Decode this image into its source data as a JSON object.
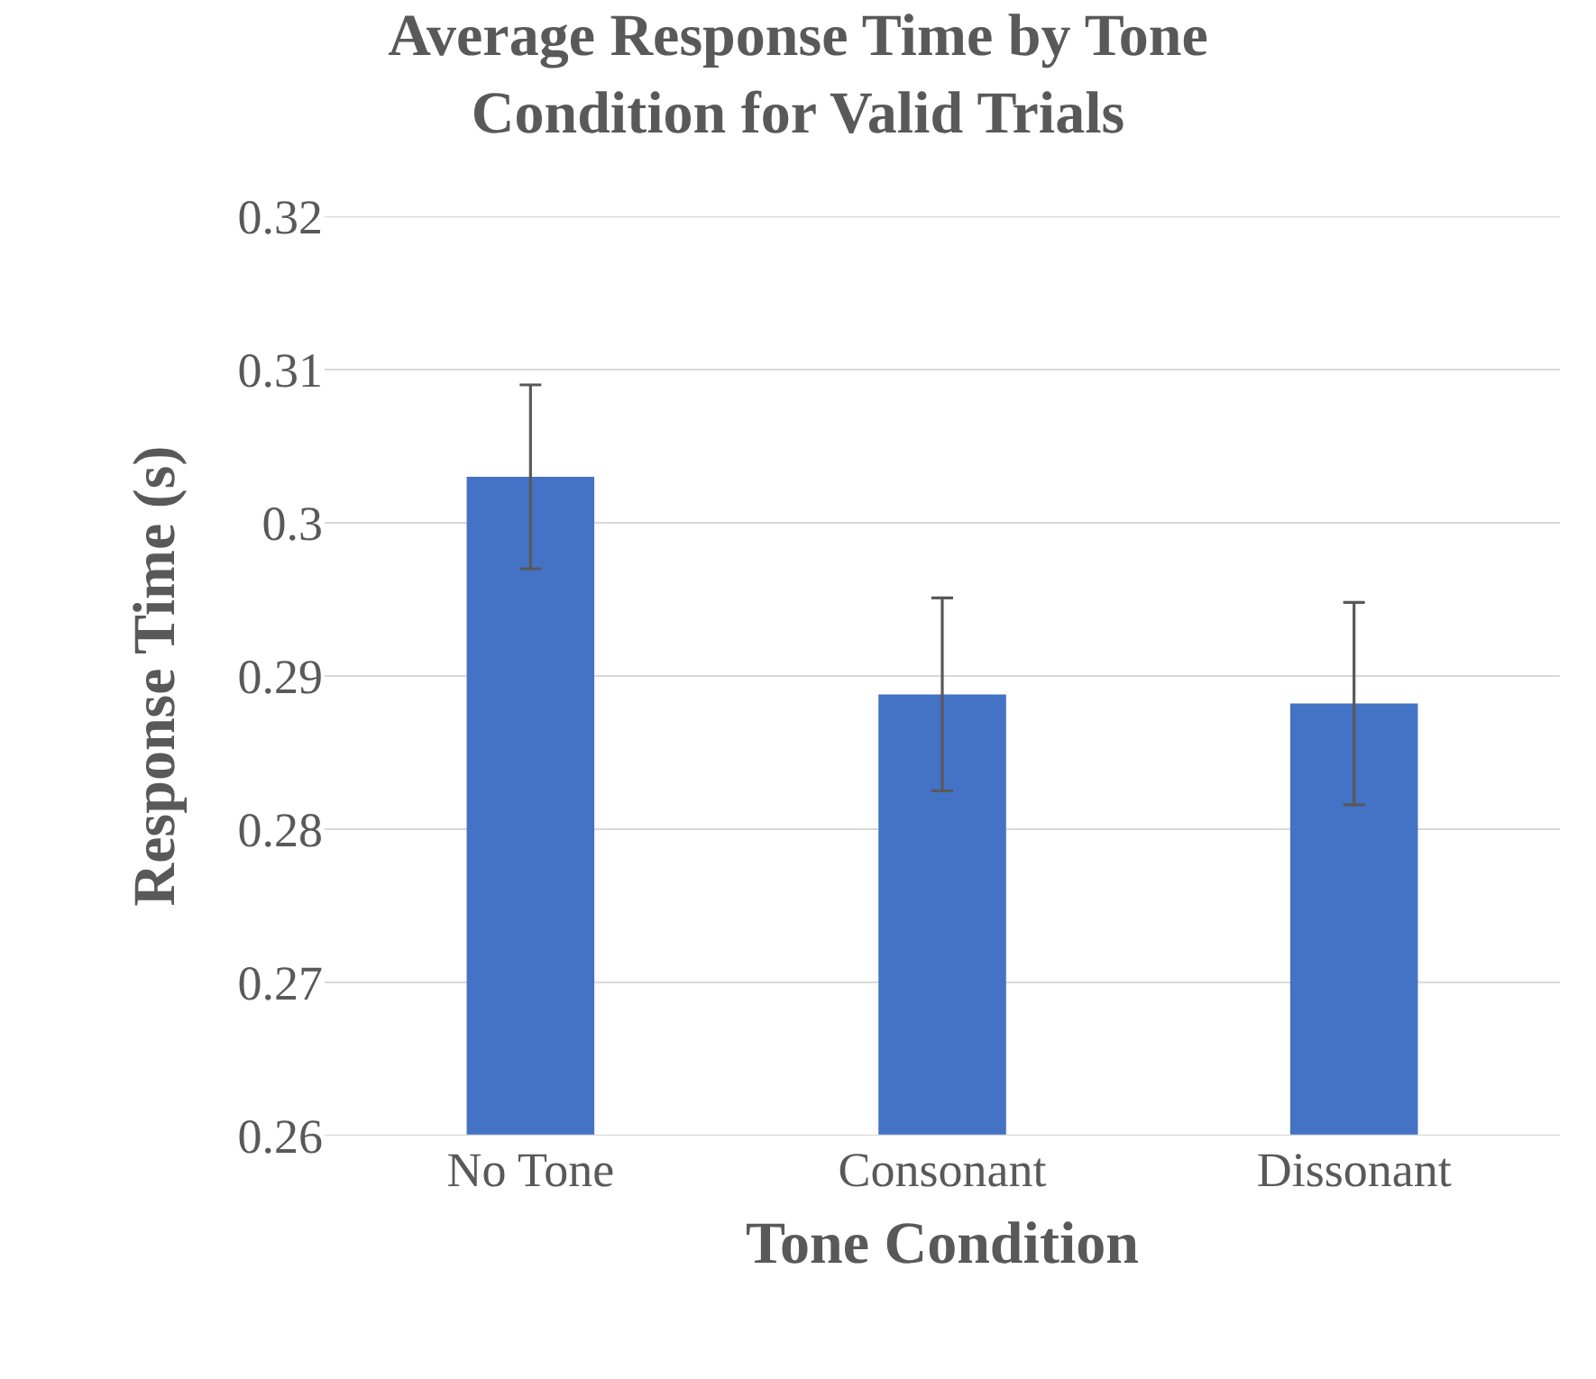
{
  "chart_data": {
    "type": "bar",
    "title": "Average Response Time by Tone\nCondition for Valid Trials",
    "xlabel": "Tone Condition",
    "ylabel": "Response Time (s)",
    "categories": [
      "No Tone",
      "Consonant",
      "Dissonant"
    ],
    "values": [
      0.303,
      0.2888,
      0.2882
    ],
    "errors": [
      0.006,
      0.0063,
      0.0066
    ],
    "color": "#4472c4",
    "ylim": [
      0.26,
      0.32
    ],
    "yticks": [
      0.26,
      0.27,
      0.28,
      0.29,
      0.3,
      0.31,
      0.32
    ],
    "grid": "y"
  }
}
